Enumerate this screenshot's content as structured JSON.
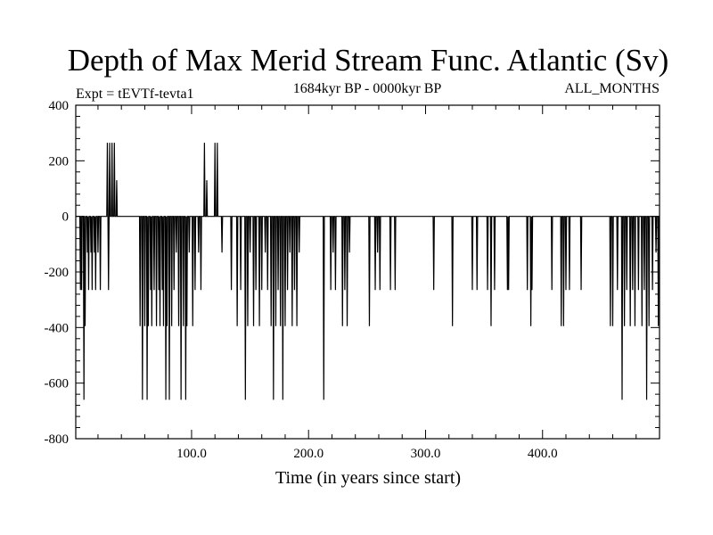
{
  "chart_data": {
    "type": "line",
    "title": "Depth of Max Merid Stream Func. Atlantic (Sv)",
    "subtitle_left": "Expt = tEVTf-tevta1",
    "subtitle_center": "1684kyr BP - 0000kyr BP",
    "subtitle_right": "ALL_MONTHS",
    "xlabel": "Time (in years since start)",
    "ylabel": "",
    "xlim": [
      1,
      500
    ],
    "ylim": [
      -800,
      400
    ],
    "x_ticks": [
      100,
      200,
      300,
      400
    ],
    "x_tick_labels": [
      "100.0",
      "200.0",
      "300.0",
      "400.0"
    ],
    "y_ticks": [
      400,
      200,
      0,
      -200,
      -400,
      -600,
      -800
    ],
    "y_tick_labels": [
      "400",
      "200",
      "0",
      "-200",
      "-400",
      "-600",
      "-800"
    ],
    "grid": false,
    "baseline": 0,
    "series": [
      {
        "name": "Depth of Max Merid Stream Func.",
        "color": "#000000",
        "events": [
          [
            5,
            -265
          ],
          [
            6,
            -265
          ],
          [
            8,
            -660
          ],
          [
            9,
            -395
          ],
          [
            11,
            -130
          ],
          [
            12,
            -265
          ],
          [
            14,
            -130
          ],
          [
            15,
            -265
          ],
          [
            17,
            -130
          ],
          [
            18,
            -265
          ],
          [
            20,
            -130
          ],
          [
            22,
            -265
          ],
          [
            28,
            265
          ],
          [
            29,
            -265
          ],
          [
            30,
            265
          ],
          [
            32,
            265
          ],
          [
            34,
            265
          ],
          [
            36,
            130
          ],
          [
            56,
            -395
          ],
          [
            58,
            -660
          ],
          [
            60,
            -395
          ],
          [
            62,
            -660
          ],
          [
            63,
            -395
          ],
          [
            65,
            -265
          ],
          [
            66,
            -395
          ],
          [
            68,
            -265
          ],
          [
            70,
            -395
          ],
          [
            72,
            -265
          ],
          [
            73,
            -395
          ],
          [
            75,
            -265
          ],
          [
            76,
            -395
          ],
          [
            78,
            -660
          ],
          [
            79,
            -395
          ],
          [
            81,
            -660
          ],
          [
            83,
            -395
          ],
          [
            85,
            -265
          ],
          [
            87,
            -130
          ],
          [
            89,
            -395
          ],
          [
            91,
            -660
          ],
          [
            93,
            -395
          ],
          [
            95,
            -660
          ],
          [
            96,
            -395
          ],
          [
            98,
            -130
          ],
          [
            101,
            -395
          ],
          [
            103,
            -265
          ],
          [
            106,
            -130
          ],
          [
            108,
            -265
          ],
          [
            111,
            265
          ],
          [
            113,
            130
          ],
          [
            120,
            265
          ],
          [
            122,
            265
          ],
          [
            126,
            -130
          ],
          [
            134,
            -265
          ],
          [
            139,
            -395
          ],
          [
            142,
            -265
          ],
          [
            146,
            -660
          ],
          [
            148,
            -395
          ],
          [
            150,
            -130
          ],
          [
            153,
            -395
          ],
          [
            155,
            -265
          ],
          [
            158,
            -395
          ],
          [
            160,
            -265
          ],
          [
            163,
            -130
          ],
          [
            165,
            -265
          ],
          [
            168,
            -395
          ],
          [
            170,
            -660
          ],
          [
            172,
            -395
          ],
          [
            174,
            -265
          ],
          [
            176,
            -395
          ],
          [
            178,
            -660
          ],
          [
            180,
            -395
          ],
          [
            182,
            -265
          ],
          [
            184,
            -130
          ],
          [
            186,
            -395
          ],
          [
            188,
            -265
          ],
          [
            190,
            -395
          ],
          [
            192,
            -130
          ],
          [
            213,
            -660
          ],
          [
            219,
            -265
          ],
          [
            221,
            -130
          ],
          [
            223,
            -265
          ],
          [
            229,
            -395
          ],
          [
            231,
            -265
          ],
          [
            233,
            -395
          ],
          [
            235,
            -130
          ],
          [
            252,
            -395
          ],
          [
            257,
            -265
          ],
          [
            259,
            -130
          ],
          [
            261,
            -265
          ],
          [
            270,
            -265
          ],
          [
            274,
            -265
          ],
          [
            307,
            -265
          ],
          [
            323,
            -395
          ],
          [
            340,
            -265
          ],
          [
            344,
            -265
          ],
          [
            353,
            -265
          ],
          [
            356,
            -395
          ],
          [
            359,
            -265
          ],
          [
            370,
            -265
          ],
          [
            371,
            -265
          ],
          [
            387,
            -265
          ],
          [
            390,
            -395
          ],
          [
            391,
            -265
          ],
          [
            408,
            -265
          ],
          [
            416,
            -395
          ],
          [
            418,
            -395
          ],
          [
            420,
            -265
          ],
          [
            423,
            -265
          ],
          [
            433,
            -265
          ],
          [
            458,
            -395
          ],
          [
            460,
            -395
          ],
          [
            464,
            -265
          ],
          [
            468,
            -660
          ],
          [
            470,
            -395
          ],
          [
            472,
            -265
          ],
          [
            475,
            -395
          ],
          [
            477,
            -265
          ],
          [
            479,
            -395
          ],
          [
            482,
            -265
          ],
          [
            485,
            -395
          ],
          [
            487,
            -265
          ],
          [
            489,
            -660
          ],
          [
            491,
            -395
          ],
          [
            494,
            -265
          ],
          [
            497,
            -130
          ],
          [
            499,
            -395
          ]
        ]
      }
    ]
  }
}
